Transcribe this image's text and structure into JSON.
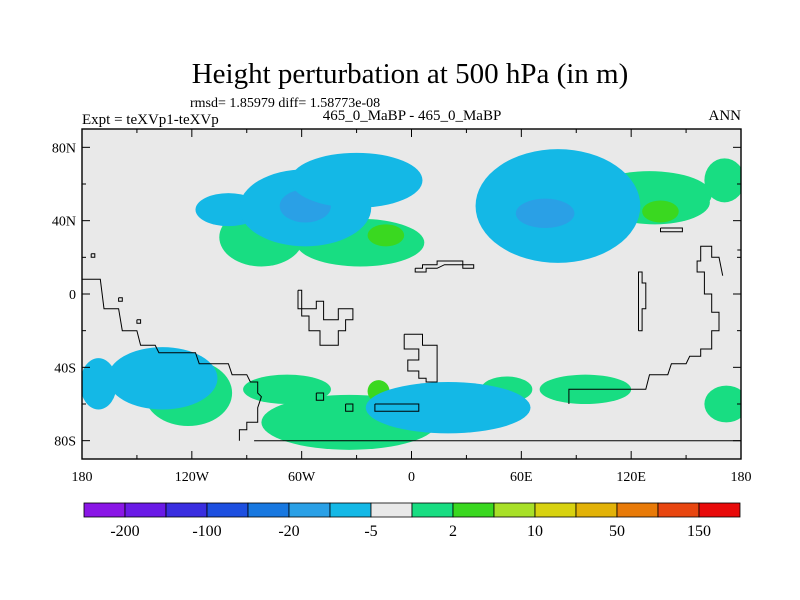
{
  "chart_data": {
    "type": "heatmap",
    "title": "Height perturbation at 500 hPa (in m)",
    "stats_text": "rmsd= 1.85979 diff= 1.58773e-08",
    "left_label": "Expt = teXVp1-teXVp",
    "center_label": "465_0_MaBP - 465_0_MaBP",
    "right_label": "ANN",
    "x_ticks": [
      "180",
      "120W",
      "60W",
      "0",
      "60E",
      "120E",
      "180"
    ],
    "y_ticks": [
      "80N",
      "40N",
      "0",
      "40S",
      "80S"
    ],
    "xlim": [
      -180,
      180
    ],
    "ylim": [
      -90,
      90
    ],
    "colorbar": {
      "labels": [
        "-200",
        "-100",
        "-20",
        "-5",
        "2",
        "10",
        "50",
        "150"
      ],
      "colors": [
        "#8a16e6",
        "#6a1ae6",
        "#3a2ee0",
        "#1d4fe0",
        "#1878e0",
        "#2aa0e6",
        "#14b8e6",
        "#e9e9e9",
        "#18dd82",
        "#3ad820",
        "#a8e028",
        "#d8d210",
        "#e2b208",
        "#e87a08",
        "#e84610",
        "#e80a0a"
      ]
    },
    "regions": [
      {
        "sign": "pos",
        "level": "2-10",
        "lon": -122,
        "lat": -54,
        "rx": 24,
        "ry": 18
      },
      {
        "sign": "pos",
        "level": "2-10",
        "lon": -68,
        "lat": -52,
        "rx": 24,
        "ry": 8
      },
      {
        "sign": "pos",
        "level": "2-10",
        "lon": -34,
        "lat": -70,
        "rx": 48,
        "ry": 15
      },
      {
        "sign": "pos",
        "level": "10-50",
        "lon": -18,
        "lat": -53,
        "rx": 6,
        "ry": 6
      },
      {
        "sign": "pos",
        "level": "2-10",
        "lon": 52,
        "lat": -52,
        "rx": 14,
        "ry": 7
      },
      {
        "sign": "pos",
        "level": "2-10",
        "lon": 95,
        "lat": -52,
        "rx": 25,
        "ry": 8
      },
      {
        "sign": "pos",
        "level": "2-10",
        "lon": 130,
        "lat": 54,
        "rx": 34,
        "ry": 13
      },
      {
        "sign": "pos",
        "level": "2-10",
        "lon": 171,
        "lat": 62,
        "rx": 11,
        "ry": 12
      },
      {
        "sign": "pos",
        "level": "2-10",
        "lon": 172,
        "lat": -60,
        "rx": 12,
        "ry": 10
      },
      {
        "sign": "pos",
        "level": "2-10",
        "lon": -82,
        "lat": 31,
        "rx": 23,
        "ry": 16
      },
      {
        "sign": "pos",
        "level": "10-50",
        "lon": -74,
        "lat": 37,
        "rx": 6,
        "ry": 5
      },
      {
        "sign": "pos",
        "level": "2-10",
        "lon": -28,
        "lat": 28,
        "rx": 35,
        "ry": 13
      },
      {
        "sign": "pos",
        "level": "10-50",
        "lon": -14,
        "lat": 32,
        "rx": 10,
        "ry": 6
      },
      {
        "sign": "pos",
        "level": "2-10",
        "lon": 133,
        "lat": 50,
        "rx": 30,
        "ry": 12
      },
      {
        "sign": "pos",
        "level": "10-50",
        "lon": 136,
        "lat": 45,
        "rx": 10,
        "ry": 6
      },
      {
        "sign": "neg",
        "level": "-20--5",
        "lon": -136,
        "lat": -46,
        "rx": 30,
        "ry": 17
      },
      {
        "sign": "neg",
        "level": "-20--5",
        "lon": -171,
        "lat": -49,
        "rx": 10,
        "ry": 14
      },
      {
        "sign": "neg",
        "level": "-20--5",
        "lon": -100,
        "lat": 46,
        "rx": 18,
        "ry": 9
      },
      {
        "sign": "neg",
        "level": "-20--5",
        "lon": -58,
        "lat": 47,
        "rx": 36,
        "ry": 21
      },
      {
        "sign": "neg",
        "level": "-100--20",
        "lon": -58,
        "lat": 48,
        "rx": 14,
        "ry": 9
      },
      {
        "sign": "neg",
        "level": "-20--5",
        "lon": 20,
        "lat": -62,
        "rx": 45,
        "ry": 14
      },
      {
        "sign": "neg",
        "level": "-20--5",
        "lon": 80,
        "lat": 48,
        "rx": 45,
        "ry": 31
      },
      {
        "sign": "neg",
        "level": "-100--20",
        "lon": 73,
        "lat": 44,
        "rx": 16,
        "ry": 8
      },
      {
        "sign": "neg",
        "level": "-20--5",
        "lon": -30,
        "lat": 62,
        "rx": 36,
        "ry": 15
      }
    ]
  }
}
